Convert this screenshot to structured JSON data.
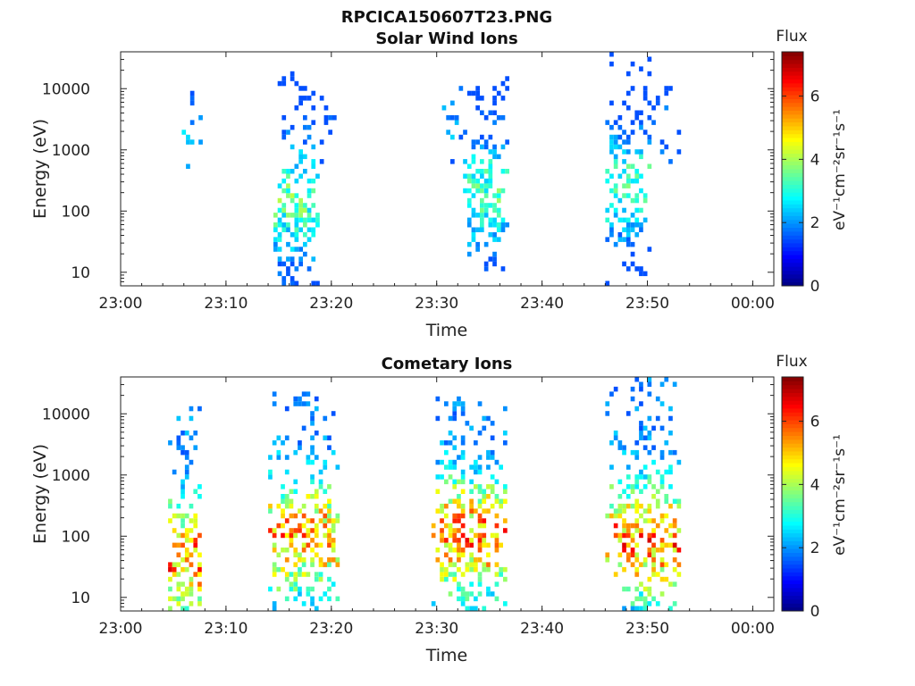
{
  "figure": {
    "title": "RPCICA150607T23.PNG"
  },
  "chart_data": [
    {
      "type": "heatmap",
      "title": "Solar Wind Ions",
      "xlabel": "Time",
      "ylabel": "Energy (eV)",
      "yscale": "log",
      "ylim": [
        6,
        40000
      ],
      "xlim": [
        "23:00",
        "00:02"
      ],
      "x_ticks": [
        "23:00",
        "23:10",
        "23:20",
        "23:30",
        "23:40",
        "23:50",
        "00:00"
      ],
      "y_ticks": [
        10,
        100,
        1000,
        10000
      ],
      "y_tick_labels": [
        "10",
        "100",
        "1000",
        "10000"
      ],
      "colorbar": {
        "title": "Flux",
        "unit": "eV⁻¹cm⁻²sr⁻¹s⁻¹",
        "range": [
          0,
          7.4
        ],
        "ticks": [
          0,
          2,
          4,
          6
        ],
        "colormap": "jet"
      },
      "bursts": [
        {
          "t_start_min": 5.0,
          "t_end_min": 8.0,
          "e_min_eV": 500,
          "e_max_eV": 14000,
          "flux_max": 2.8,
          "peak_energy_eV": 1200,
          "density": 0.1
        },
        {
          "t_start_min": 14.5,
          "t_end_min": 18.5,
          "e_min_eV": 6,
          "e_max_eV": 18000,
          "flux_max": 4.2,
          "peak_energy_eV": 150,
          "density": 0.55
        },
        {
          "t_start_min": 18.5,
          "t_end_min": 20.5,
          "e_min_eV": 700,
          "e_max_eV": 9000,
          "flux_max": 2.0,
          "peak_energy_eV": 3000,
          "density": 0.18
        },
        {
          "t_start_min": 30.5,
          "t_end_min": 32.5,
          "e_min_eV": 600,
          "e_max_eV": 15000,
          "flux_max": 2.6,
          "peak_energy_eV": 2500,
          "density": 0.15
        },
        {
          "t_start_min": 32.5,
          "t_end_min": 36.5,
          "e_min_eV": 6,
          "e_max_eV": 15000,
          "flux_max": 4.0,
          "peak_energy_eV": 200,
          "density": 0.55
        },
        {
          "t_start_min": 46.0,
          "t_end_min": 50.0,
          "e_min_eV": 6,
          "e_max_eV": 35000,
          "flux_max": 4.0,
          "peak_energy_eV": 250,
          "density": 0.5
        },
        {
          "t_start_min": 50.0,
          "t_end_min": 53.0,
          "e_min_eV": 500,
          "e_max_eV": 10000,
          "flux_max": 2.2,
          "peak_energy_eV": 2000,
          "density": 0.15
        }
      ]
    },
    {
      "type": "heatmap",
      "title": "Cometary Ions",
      "xlabel": "Time",
      "ylabel": "Energy (eV)",
      "yscale": "log",
      "ylim": [
        6,
        40000
      ],
      "xlim": [
        "23:00",
        "00:02"
      ],
      "x_ticks": [
        "23:00",
        "23:10",
        "23:20",
        "23:30",
        "23:40",
        "23:50",
        "00:00"
      ],
      "y_ticks": [
        10,
        100,
        1000,
        10000
      ],
      "y_tick_labels": [
        "10",
        "100",
        "1000",
        "10000"
      ],
      "colorbar": {
        "title": "Flux",
        "unit": "eV⁻¹cm⁻²sr⁻¹s⁻¹",
        "range": [
          0,
          7.4
        ],
        "ticks": [
          0,
          2,
          4,
          6
        ],
        "colormap": "jet"
      },
      "bursts": [
        {
          "t_start_min": 4.5,
          "t_end_min": 7.5,
          "e_min_eV": 6,
          "e_max_eV": 13000,
          "flux_max": 6.8,
          "peak_energy_eV": 40,
          "density": 0.55
        },
        {
          "t_start_min": 14.0,
          "t_end_min": 20.5,
          "e_min_eV": 6,
          "e_max_eV": 20000,
          "flux_max": 6.5,
          "peak_energy_eV": 100,
          "density": 0.6
        },
        {
          "t_start_min": 29.5,
          "t_end_min": 36.5,
          "e_min_eV": 6,
          "e_max_eV": 16000,
          "flux_max": 6.8,
          "peak_energy_eV": 100,
          "density": 0.6
        },
        {
          "t_start_min": 46.0,
          "t_end_min": 53.0,
          "e_min_eV": 6,
          "e_max_eV": 35000,
          "flux_max": 6.8,
          "peak_energy_eV": 80,
          "density": 0.55
        }
      ]
    }
  ]
}
